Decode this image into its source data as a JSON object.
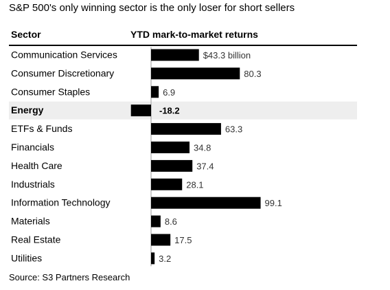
{
  "title": "S&P 500's only winning sector is the only loser for short sellers",
  "headers": {
    "sector": "Sector",
    "returns": "YTD mark-to-market returns"
  },
  "source": "Source: S3 Partners Research",
  "colors": {
    "bar": "#000000",
    "highlight_row": "#eeeeee",
    "axis": "#999999",
    "text": "#333333"
  },
  "chart_data": {
    "type": "bar",
    "orientation": "horizontal",
    "title": "S&P 500's only winning sector is the only loser for short sellers",
    "xlabel": "YTD mark-to-market returns",
    "ylabel": "Sector",
    "unit": "billion",
    "categories": [
      "Communication Services",
      "Consumer Discretionary",
      "Consumer Staples",
      "Energy",
      "ETFs & Funds",
      "Financials",
      "Health Care",
      "Industrials",
      "Information Technology",
      "Materials",
      "Real Estate",
      "Utilities"
    ],
    "values": [
      43.3,
      80.3,
      6.9,
      -18.2,
      63.3,
      34.8,
      37.4,
      28.1,
      99.1,
      8.6,
      17.5,
      3.2
    ],
    "labels": [
      "$43.3 billion",
      "80.3",
      "6.9",
      "-18.2",
      "63.3",
      "34.8",
      "37.4",
      "28.1",
      "99.1",
      "8.6",
      "17.5",
      "3.2"
    ],
    "highlight": [
      "Energy"
    ],
    "grid": false,
    "legend": "none"
  }
}
